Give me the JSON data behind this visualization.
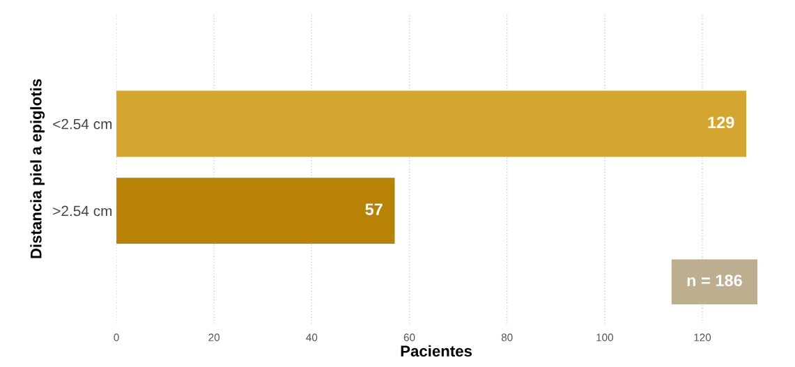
{
  "chart_data": {
    "type": "bar",
    "orientation": "horizontal",
    "xlabel": "Pacientes",
    "ylabel": "Distancia piel a epiglotis",
    "categories": [
      "<2.54 cm",
      ">2.54 cm"
    ],
    "values": [
      129,
      57
    ],
    "colors": [
      "#d4a62f",
      "#b88207"
    ],
    "xlim": [
      0,
      131
    ],
    "xticks": [
      0,
      20,
      40,
      60,
      80,
      100,
      120
    ],
    "grid": "x",
    "data_labels": true,
    "annotations": [
      "n = 186"
    ]
  }
}
